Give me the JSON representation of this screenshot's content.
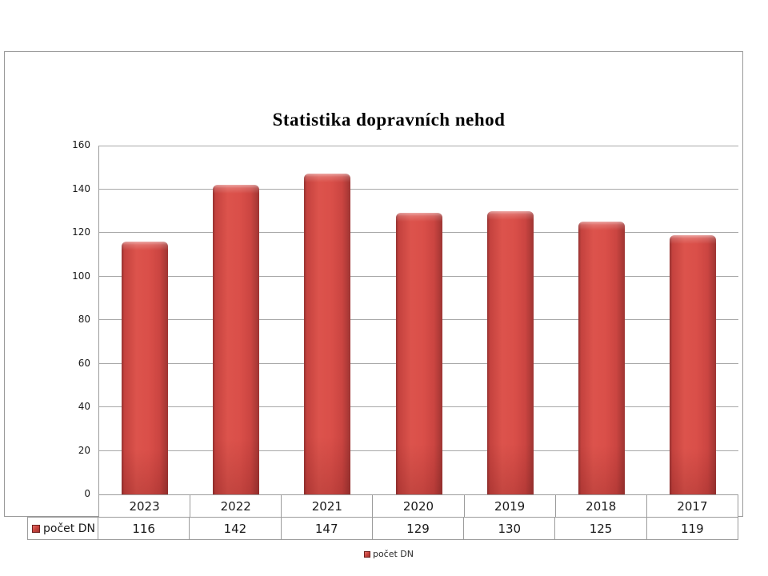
{
  "chart_data": {
    "type": "bar",
    "title": "Statistika dopravních nehod",
    "categories": [
      "2023",
      "2022",
      "2021",
      "2020",
      "2019",
      "2018",
      "2017"
    ],
    "series": [
      {
        "name": "počet DN",
        "values": [
          116,
          142,
          147,
          129,
          130,
          125,
          119
        ]
      }
    ],
    "xlabel": "",
    "ylabel": "",
    "ylim": [
      0,
      160
    ],
    "ytick_step": 20,
    "grid": true,
    "legend_position": "bottom",
    "data_table_shown": true,
    "bar_color": "#d24a44",
    "bar_edge_color": "#943231",
    "gridline_color": "#a8a8a8",
    "frame_border_color": "#999999"
  }
}
